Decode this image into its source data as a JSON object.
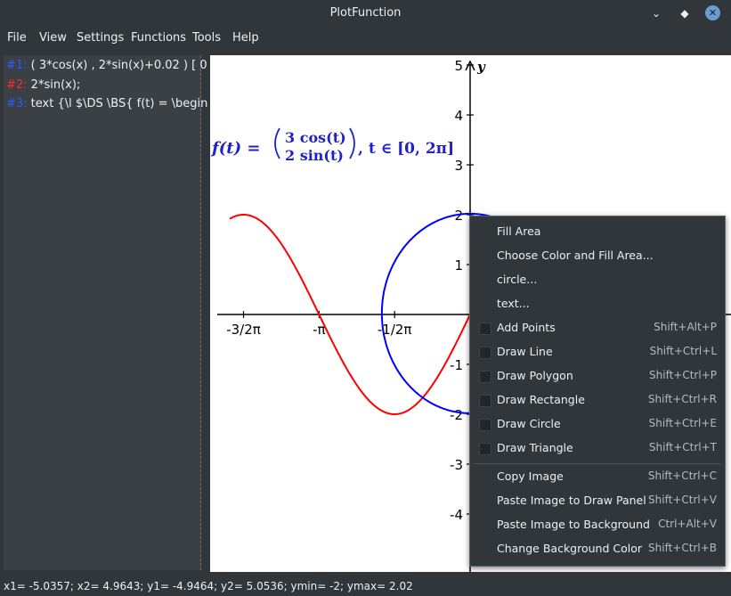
{
  "window": {
    "title": "PlotFunction"
  },
  "menubar": {
    "items": [
      {
        "label": "File"
      },
      {
        "label": "View"
      },
      {
        "label": "Settings"
      },
      {
        "label": "Functions"
      },
      {
        "label": "Tools"
      },
      {
        "label": "Help"
      }
    ]
  },
  "functions": [
    {
      "index": "#1:",
      "text": " ( 3*cos(x) , 2*sin(x)+0.02 )  [ 0"
    },
    {
      "index": "#2:",
      "text": " 2*sin(x);"
    },
    {
      "index": "#3:",
      "text": " text {\\l $\\DS \\BS{ f(t) = \\begin"
    }
  ],
  "plot": {
    "formula": {
      "lhs": "f(t) =",
      "top": "3 cos(t)",
      "bottom": "2 sin(t)",
      "rhs": ",  t ∈ [0, 2π]"
    },
    "y_axis_label": "y",
    "x_ticks": [
      "-3/2π",
      "-π",
      "-1/2π"
    ],
    "y_ticks": [
      "5",
      "4",
      "3",
      "2",
      "1",
      "-1",
      "-2",
      "-3",
      "-4"
    ],
    "colors": {
      "curve1": "#0000ff",
      "curve2": "#ff0000",
      "axes": "#000000"
    }
  },
  "context_menu": {
    "items": [
      {
        "label": "Fill Area",
        "shortcut": "",
        "check": false
      },
      {
        "label": "Choose Color and Fill Area...",
        "shortcut": "",
        "check": false
      },
      {
        "label": "circle...",
        "shortcut": "",
        "check": false
      },
      {
        "label": "text...",
        "shortcut": "",
        "check": false
      },
      {
        "label": "Add Points",
        "shortcut": "Shift+Alt+P",
        "check": true
      },
      {
        "label": "Draw Line",
        "shortcut": "Shift+Ctrl+L",
        "check": true
      },
      {
        "label": "Draw Polygon",
        "shortcut": "Shift+Ctrl+P",
        "check": true
      },
      {
        "label": "Draw Rectangle",
        "shortcut": "Shift+Ctrl+R",
        "check": true
      },
      {
        "label": "Draw Circle",
        "shortcut": "Shift+Ctrl+E",
        "check": true
      },
      {
        "label": "Draw Triangle",
        "shortcut": "Shift+Ctrl+T",
        "check": true
      },
      {
        "label": "Copy Image",
        "shortcut": "Shift+Ctrl+C",
        "check": false
      },
      {
        "label": "Paste Image to Draw Panel",
        "shortcut": "Shift+Ctrl+V",
        "check": false
      },
      {
        "label": "Paste Image to Background",
        "shortcut": "Ctrl+Alt+V",
        "check": false
      },
      {
        "label": "Change Background Color",
        "shortcut": "Shift+Ctrl+B",
        "check": false
      }
    ]
  },
  "statusbar": {
    "text": "x1= -5.0357; x2= 4.9643; y1= -4.9464; y2= 5.0536; ymin= -2; ymax= 2.02"
  }
}
